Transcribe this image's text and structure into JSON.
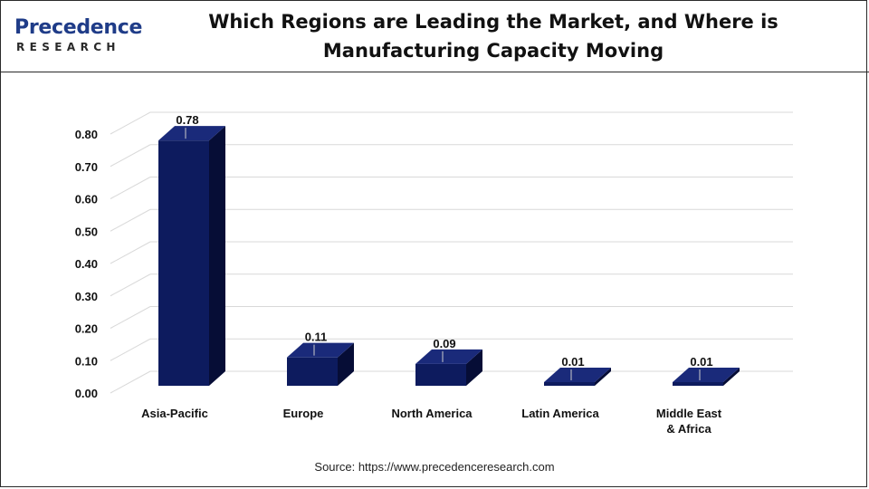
{
  "header": {
    "logo_main": "Precedence",
    "logo_sub": "RESEARCH",
    "title": "Which Regions are Leading the Market, and Where is Manufacturing Capacity Moving"
  },
  "source": "Source: https://www.precedenceresearch.com",
  "colors": {
    "bar_front": "#0d1b5e",
    "bar_side": "#060d36",
    "bar_top": "#1a2a7a",
    "grid": "#d9d9d9",
    "logo": "#1f3c88"
  },
  "chart_data": {
    "type": "bar",
    "categories": [
      "Asia-Pacific",
      "Europe",
      "North America",
      "Latin America",
      "Middle East & Africa"
    ],
    "values": [
      0.78,
      0.11,
      0.09,
      0.01,
      0.01
    ],
    "data_labels": [
      "0.78",
      "0.11",
      "0.09",
      "0.01",
      "0.01"
    ],
    "y_ticks": [
      "0.00",
      "0.10",
      "0.20",
      "0.30",
      "0.40",
      "0.50",
      "0.60",
      "0.70",
      "0.80"
    ],
    "ylim": [
      0,
      0.8
    ],
    "grid": true,
    "legend": "none",
    "style": "3d-column"
  }
}
